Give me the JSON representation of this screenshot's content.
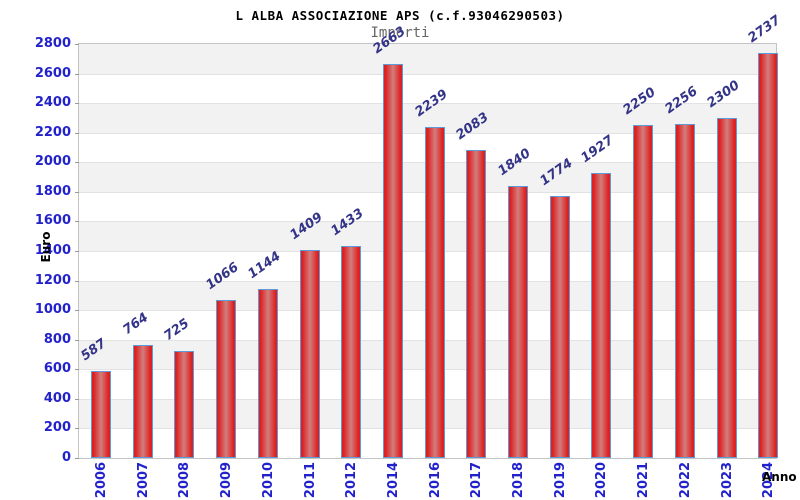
{
  "header": {
    "title": "L ALBA ASSOCIAZIONE APS (c.f.93046290503)",
    "subtitle": "Importi"
  },
  "chart_data": {
    "type": "bar",
    "title": "L ALBA ASSOCIAZIONE APS (c.f.93046290503)",
    "subtitle": "Importi",
    "xlabel": "Anno",
    "ylabel": "Euro",
    "categories": [
      "2006",
      "2007",
      "2008",
      "2009",
      "2010",
      "2011",
      "2012",
      "2014",
      "2016",
      "2017",
      "2018",
      "2019",
      "2020",
      "2021",
      "2022",
      "2023",
      "2024"
    ],
    "values": [
      587,
      764,
      725,
      1066,
      1144,
      1409,
      1433,
      2663,
      2239,
      2083,
      1840,
      1774,
      1927,
      2250,
      2256,
      2300,
      2737
    ],
    "value_labels": [
      "587",
      "764",
      "725",
      "1066",
      "1144",
      "1409",
      "1433",
      "2663",
      "2239",
      "2083",
      "1840",
      "1774",
      "1927",
      "2250",
      "2256",
      "2300",
      "2737"
    ],
    "ylim": [
      0,
      2800
    ],
    "ytick_step": 200,
    "yticks": [
      "0",
      "200",
      "400",
      "600",
      "800",
      "1000",
      "1200",
      "1400",
      "1600",
      "1800",
      "2000",
      "2200",
      "2400",
      "2600",
      "2800"
    ],
    "grid": true,
    "legend": null,
    "colors": {
      "bar_edge": "#dd2020",
      "bar_mid": "#d27d7d",
      "bar_border": "#5e9ad8",
      "tick_label": "#2222cc",
      "value_label": "#333388",
      "band_gray": "#f2f2f2",
      "band_white": "#ffffff",
      "grid_line": "#e2e2e2",
      "title_color": "#000000",
      "subtitle_color": "#666666"
    }
  }
}
